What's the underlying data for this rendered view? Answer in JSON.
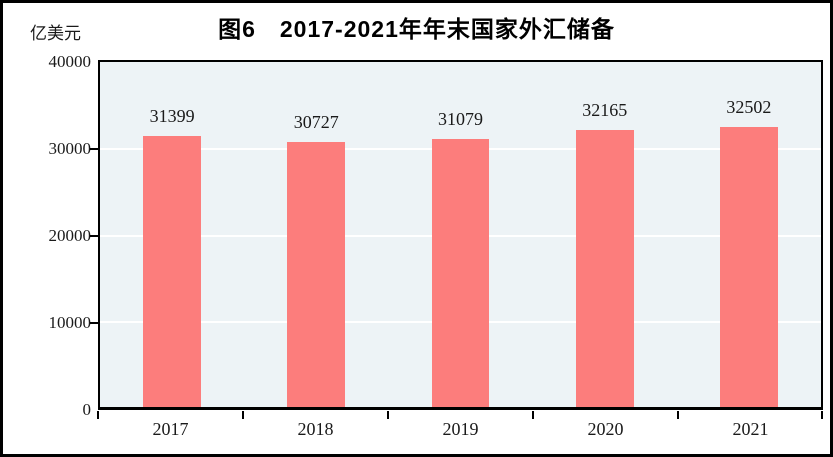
{
  "chart_data": {
    "type": "bar",
    "title": "图6　2017-2021年年末国家外汇储备",
    "unit_label": "亿美元",
    "categories": [
      "2017",
      "2018",
      "2019",
      "2020",
      "2021"
    ],
    "values": [
      31399,
      30727,
      31079,
      32165,
      32502
    ],
    "ylim": [
      0,
      40000
    ],
    "ytick_labels": [
      "0",
      "10000",
      "20000",
      "30000",
      "40000"
    ],
    "grid": "horizontal white gridlines at 10000, 20000, 30000, behind bars",
    "legend": "none",
    "colors": {
      "bar": "#fc7d7c",
      "plot_background": "#edf3f6",
      "gridline": "#ffffff",
      "axis": "#000000",
      "text": "#1a1a1a"
    }
  }
}
